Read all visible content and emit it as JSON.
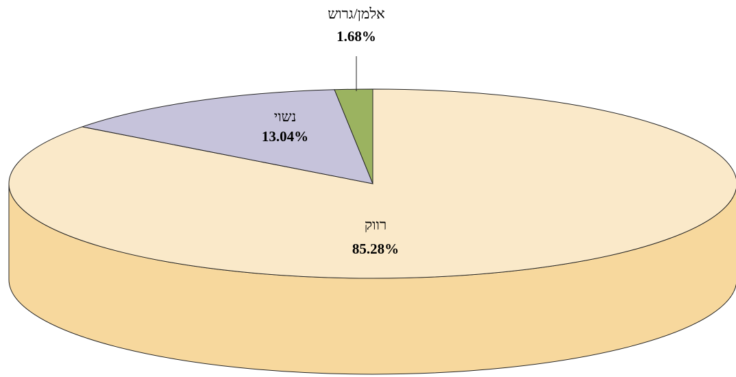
{
  "chart_data": {
    "type": "pie",
    "categories": [
      "רווק",
      "נשוי",
      "אלמן/גרוש"
    ],
    "values": [
      85.28,
      13.04,
      1.68
    ],
    "value_labels": [
      "85.28%",
      "13.04%",
      "1.68%"
    ],
    "colors": [
      "#FAE9C9",
      "#C6C3DB",
      "#9BB360"
    ],
    "side_colors": [
      "#F7D89D",
      "#A9A6C4",
      "#7F9747"
    ]
  }
}
